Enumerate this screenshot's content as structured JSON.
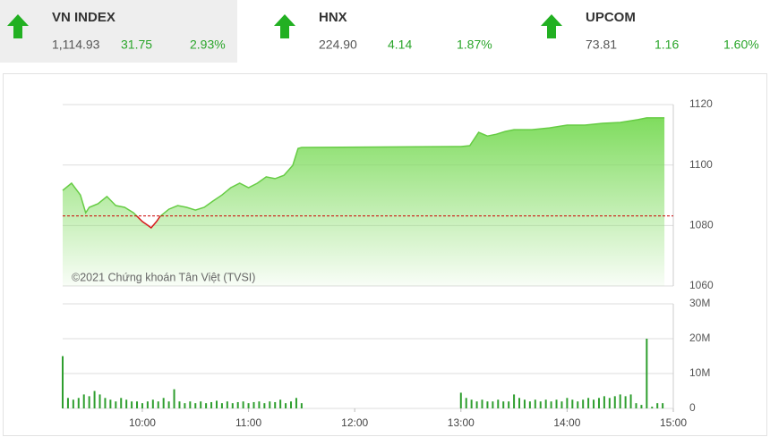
{
  "indices": [
    {
      "name": "VN INDEX",
      "value": "1,114.93",
      "change": "31.75",
      "percent": "2.93%"
    },
    {
      "name": "HNX",
      "value": "224.90",
      "change": "4.14",
      "percent": "1.87%"
    },
    {
      "name": "UPCOM",
      "value": "73.81",
      "change": "1.16",
      "percent": "1.60%"
    }
  ],
  "chart_data": [
    {
      "type": "area",
      "annotation": "©2021 Chứng khoán Tân Việt (TVSI)",
      "color": "#66cc44",
      "below_reference_color": "#d7191c",
      "reference_line": 1083.18,
      "reference_color": "#cc0000",
      "x": [
        "09:15",
        "09:20",
        "09:25",
        "09:28",
        "09:30",
        "09:35",
        "09:40",
        "09:45",
        "09:50",
        "09:55",
        "10:00",
        "10:03",
        "10:05",
        "10:08",
        "10:10",
        "10:15",
        "10:20",
        "10:25",
        "10:30",
        "10:35",
        "10:40",
        "10:45",
        "10:50",
        "10:55",
        "11:00",
        "11:05",
        "11:10",
        "11:15",
        "11:20",
        "11:25",
        "11:28",
        "11:30",
        "13:00",
        "13:05",
        "13:10",
        "13:15",
        "13:20",
        "13:25",
        "13:30",
        "13:40",
        "13:50",
        "14:00",
        "14:10",
        "14:20",
        "14:30",
        "14:40",
        "14:45",
        "14:55"
      ],
      "values": [
        1091.6,
        1094.0,
        1090.1,
        1084.2,
        1086.0,
        1087.2,
        1089.6,
        1086.6,
        1086.0,
        1084.2,
        1081.3,
        1080.1,
        1079.2,
        1081.3,
        1083.0,
        1085.4,
        1086.6,
        1086.0,
        1085.1,
        1086.0,
        1088.1,
        1090.1,
        1092.5,
        1094.0,
        1092.5,
        1094.0,
        1096.1,
        1095.5,
        1096.6,
        1099.9,
        1105.5,
        1105.8,
        1106.1,
        1106.4,
        1110.8,
        1109.6,
        1110.2,
        1111.1,
        1111.7,
        1111.7,
        1112.3,
        1113.2,
        1113.2,
        1113.8,
        1114.1,
        1115.0,
        1115.6,
        1115.6
      ],
      "xlim": [
        "09:15",
        "15:00"
      ],
      "ylim": [
        1060,
        1120
      ],
      "yticks": [
        1060,
        1080,
        1100,
        1120
      ],
      "grid": true
    },
    {
      "type": "bar",
      "color": "#2e9e2e",
      "x": [
        "09:15",
        "09:18",
        "09:21",
        "09:24",
        "09:27",
        "09:30",
        "09:33",
        "09:36",
        "09:39",
        "09:42",
        "09:45",
        "09:48",
        "09:51",
        "09:54",
        "09:57",
        "10:00",
        "10:03",
        "10:06",
        "10:09",
        "10:12",
        "10:15",
        "10:18",
        "10:21",
        "10:24",
        "10:27",
        "10:30",
        "10:33",
        "10:36",
        "10:39",
        "10:42",
        "10:45",
        "10:48",
        "10:51",
        "10:54",
        "10:57",
        "11:00",
        "11:03",
        "11:06",
        "11:09",
        "11:12",
        "11:15",
        "11:18",
        "11:21",
        "11:24",
        "11:27",
        "11:30",
        "13:00",
        "13:03",
        "13:06",
        "13:09",
        "13:12",
        "13:15",
        "13:18",
        "13:21",
        "13:24",
        "13:27",
        "13:30",
        "13:33",
        "13:36",
        "13:39",
        "13:42",
        "13:45",
        "13:48",
        "13:51",
        "13:54",
        "13:57",
        "14:00",
        "14:03",
        "14:06",
        "14:09",
        "14:12",
        "14:15",
        "14:18",
        "14:21",
        "14:24",
        "14:27",
        "14:30",
        "14:33",
        "14:36",
        "14:39",
        "14:42",
        "14:45",
        "14:48",
        "14:51",
        "14:54"
      ],
      "values": [
        15,
        3,
        2.5,
        3,
        4,
        3.5,
        5,
        4,
        3,
        2.5,
        2,
        3,
        2.5,
        2,
        2,
        1.5,
        2,
        2.5,
        2,
        3,
        2,
        5.5,
        2,
        1.5,
        2,
        1.5,
        2,
        1.5,
        1.8,
        2.2,
        1.5,
        2,
        1.5,
        1.8,
        2,
        1.5,
        1.8,
        2,
        1.5,
        2,
        1.8,
        2.5,
        1.5,
        2,
        3,
        1.5,
        4.5,
        3,
        2.5,
        2,
        2.5,
        2,
        2,
        2.5,
        2,
        2,
        4,
        3,
        2.5,
        2,
        2.5,
        2,
        2.5,
        2,
        2.5,
        2,
        3,
        2.5,
        2,
        2.5,
        3,
        2.5,
        3,
        3.5,
        3,
        3.5,
        4,
        3.5,
        4,
        1.5,
        1,
        20,
        0.5,
        1.5,
        1.5
      ],
      "xlim": [
        "09:15",
        "15:00"
      ],
      "xticks": [
        "10:00",
        "11:00",
        "12:00",
        "13:00",
        "14:00",
        "15:00"
      ],
      "ylim": [
        0,
        30
      ],
      "yticks": [
        0,
        {
          "value": 10,
          "label": "10M"
        },
        {
          "value": 20,
          "label": "20M"
        },
        {
          "value": 30,
          "label": "30M"
        }
      ],
      "grid": true
    }
  ]
}
